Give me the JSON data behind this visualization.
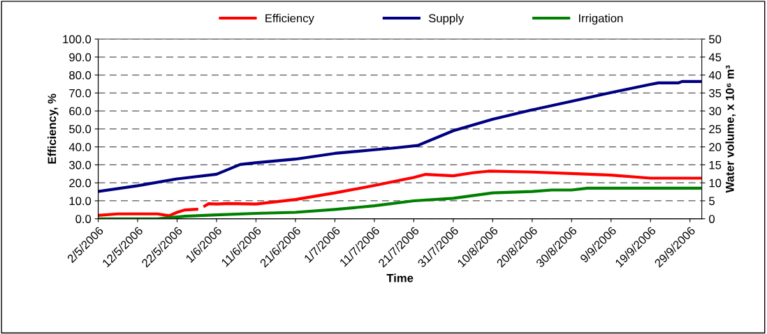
{
  "chart_data": {
    "type": "line",
    "xlabel": "Time",
    "ylabel": "Efficiency, %",
    "y2label": "Water volume, x 10⁶ m³",
    "xlim": [
      "2006-05-02",
      "2006-10-02"
    ],
    "xticks": [
      {
        "value": "2006-05-02",
        "label": "2/5/2006"
      },
      {
        "value": "2006-05-12",
        "label": "12/5/2006"
      },
      {
        "value": "2006-05-22",
        "label": "22/5/2006"
      },
      {
        "value": "2006-06-01",
        "label": "1/6/2006"
      },
      {
        "value": "2006-06-11",
        "label": "11/6/2006"
      },
      {
        "value": "2006-06-21",
        "label": "21/6/2006"
      },
      {
        "value": "2006-07-01",
        "label": "1/7/2006"
      },
      {
        "value": "2006-07-11",
        "label": "11/7/2006"
      },
      {
        "value": "2006-07-21",
        "label": "21/7/2006"
      },
      {
        "value": "2006-07-31",
        "label": "31/7/2006"
      },
      {
        "value": "2006-08-10",
        "label": "10/8/2006"
      },
      {
        "value": "2006-08-20",
        "label": "20/8/2006"
      },
      {
        "value": "2006-08-30",
        "label": "30/8/2006"
      },
      {
        "value": "2006-09-09",
        "label": "9/9/2006"
      },
      {
        "value": "2006-09-19",
        "label": "19/9/2006"
      },
      {
        "value": "2006-09-29",
        "label": "29/9/2006"
      }
    ],
    "ylim": [
      0,
      100
    ],
    "yticks": [
      {
        "value": 0,
        "label": "0.0"
      },
      {
        "value": 10,
        "label": "10.0"
      },
      {
        "value": 20,
        "label": "20.0"
      },
      {
        "value": 30,
        "label": "30.0"
      },
      {
        "value": 40,
        "label": "40.0"
      },
      {
        "value": 50,
        "label": "50.0"
      },
      {
        "value": 60,
        "label": "60.0"
      },
      {
        "value": 70,
        "label": "70.0"
      },
      {
        "value": 80,
        "label": "80.0"
      },
      {
        "value": 90,
        "label": "90.0"
      },
      {
        "value": 100,
        "label": "100.0"
      }
    ],
    "y2lim": [
      0,
      50
    ],
    "y2ticks": [
      0,
      5,
      10,
      15,
      20,
      25,
      30,
      35,
      40,
      45,
      50
    ],
    "grid": "y",
    "legend": "top",
    "series": [
      {
        "name": "Efficiency",
        "color": "#ff0000",
        "x": [
          "2006-05-02",
          "2006-05-07",
          "2006-05-12",
          "2006-05-17",
          "2006-05-20",
          "2006-05-22",
          "2006-05-24",
          "2006-05-27",
          "2006-05-28",
          "2006-05-29",
          "2006-05-30",
          "2006-06-01",
          "2006-06-04",
          "2006-06-11",
          "2006-06-21",
          "2006-07-01",
          "2006-07-11",
          "2006-07-21",
          "2006-07-24",
          "2006-07-31",
          "2006-08-05",
          "2006-08-09",
          "2006-08-20",
          "2006-08-30",
          "2006-09-09",
          "2006-09-19",
          "2006-10-02"
        ],
        "values": [
          1.9,
          2.7,
          2.7,
          2.7,
          1.7,
          3.6,
          4.9,
          5.3,
          null,
          7.1,
          8.4,
          8.2,
          8.5,
          8.2,
          10.7,
          14.4,
          18.5,
          23.0,
          24.7,
          23.9,
          25.6,
          26.5,
          26.0,
          25.2,
          24.3,
          22.6,
          22.6
        ]
      },
      {
        "name": "Supply",
        "color": "#000080",
        "axis": "y2",
        "x": [
          "2006-05-02",
          "2006-05-12",
          "2006-05-22",
          "2006-06-01",
          "2006-06-07",
          "2006-06-11",
          "2006-06-21",
          "2006-07-01",
          "2006-07-11",
          "2006-07-16",
          "2006-07-22",
          "2006-07-31",
          "2006-08-10",
          "2006-08-20",
          "2006-08-30",
          "2006-09-09",
          "2006-09-19",
          "2006-09-21",
          "2006-09-26",
          "2006-09-27",
          "2006-10-02"
        ],
        "values": [
          7.6,
          9.2,
          11.1,
          12.4,
          15.1,
          15.6,
          16.6,
          18.2,
          19.2,
          19.7,
          20.4,
          24.5,
          27.7,
          30.3,
          32.7,
          35.1,
          37.4,
          37.8,
          37.8,
          38.2,
          38.2
        ]
      },
      {
        "name": "Irrigation",
        "color": "#008000",
        "axis": "y2",
        "x": [
          "2006-05-02",
          "2006-05-17",
          "2006-05-22",
          "2006-05-24",
          "2006-06-01",
          "2006-06-11",
          "2006-06-21",
          "2006-07-01",
          "2006-07-11",
          "2006-07-21",
          "2006-07-31",
          "2006-08-10",
          "2006-08-20",
          "2006-08-25",
          "2006-08-30",
          "2006-09-03",
          "2006-10-02"
        ],
        "values": [
          0,
          0,
          0.5,
          0.7,
          1.1,
          1.5,
          1.8,
          2.6,
          3.6,
          5.0,
          5.7,
          7.2,
          7.6,
          8.0,
          8.0,
          8.5,
          8.5
        ]
      }
    ]
  }
}
